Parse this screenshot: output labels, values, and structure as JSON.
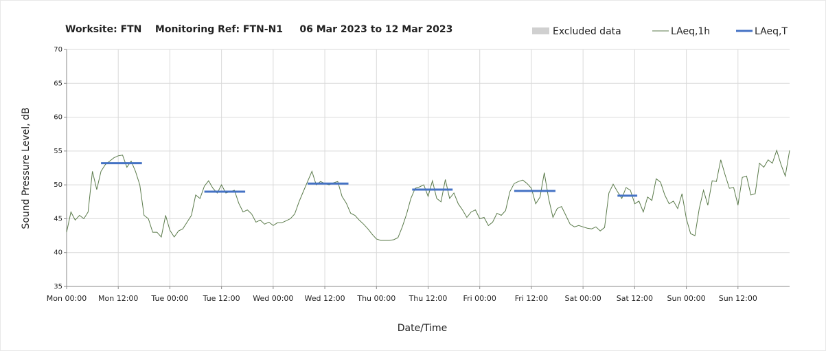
{
  "chart_data": {
    "type": "line",
    "title": "Worksite: FTN    Monitoring Ref: FTN-N1     06 Mar 2023 to 12 Mar 2023",
    "xlabel": "Date/Time",
    "ylabel": "Sound Pressure Level, dB",
    "xlim": [
      0,
      168
    ],
    "ylim": [
      35,
      70
    ],
    "xticks": [
      {
        "value": 0,
        "label": "Mon 00:00"
      },
      {
        "value": 12,
        "label": "Mon 12:00"
      },
      {
        "value": 24,
        "label": "Tue 00:00"
      },
      {
        "value": 36,
        "label": "Tue 12:00"
      },
      {
        "value": 48,
        "label": "Wed 00:00"
      },
      {
        "value": 60,
        "label": "Wed 12:00"
      },
      {
        "value": 72,
        "label": "Thu 00:00"
      },
      {
        "value": 84,
        "label": "Thu 12:00"
      },
      {
        "value": 96,
        "label": "Fri 00:00"
      },
      {
        "value": 108,
        "label": "Fri 12:00"
      },
      {
        "value": 120,
        "label": "Sat 00:00"
      },
      {
        "value": 132,
        "label": "Sat 12:00"
      },
      {
        "value": 144,
        "label": "Sun 00:00"
      },
      {
        "value": 156,
        "label": "Sun 12:00"
      }
    ],
    "yticks": [
      35,
      40,
      45,
      50,
      55,
      60,
      65,
      70
    ],
    "grid": true,
    "series": [
      {
        "name": "Excluded data",
        "color": "#d0d0d0",
        "x": [],
        "values": []
      },
      {
        "name": "LAeq,1h",
        "color": "#5a7a4a",
        "x": [
          0,
          1,
          2,
          3,
          4,
          5,
          6,
          7,
          8,
          9,
          10,
          11,
          12,
          13,
          14,
          15,
          16,
          17,
          18,
          19,
          20,
          21,
          22,
          23,
          24,
          25,
          26,
          27,
          28,
          29,
          30,
          31,
          32,
          33,
          34,
          35,
          36,
          37,
          38,
          39,
          40,
          41,
          42,
          43,
          44,
          45,
          46,
          47,
          48,
          49,
          50,
          51,
          52,
          53,
          54,
          55,
          56,
          57,
          58,
          59,
          60,
          61,
          62,
          63,
          64,
          65,
          66,
          67,
          68,
          69,
          70,
          71,
          72,
          73,
          74,
          75,
          76,
          77,
          78,
          79,
          80,
          81,
          82,
          83,
          84,
          85,
          86,
          87,
          88,
          89,
          90,
          91,
          92,
          93,
          94,
          95,
          96,
          97,
          98,
          99,
          100,
          101,
          102,
          103,
          104,
          105,
          106,
          107,
          108,
          109,
          110,
          111,
          112,
          113,
          114,
          115,
          116,
          117,
          118,
          119,
          120,
          121,
          122,
          123,
          124,
          125,
          126,
          127,
          128,
          129,
          130,
          131,
          132,
          133,
          134,
          135,
          136,
          137,
          138,
          139,
          140,
          141,
          142,
          143,
          144,
          145,
          146,
          147,
          148,
          149,
          150,
          151,
          152,
          153,
          154,
          155,
          156,
          157,
          158,
          159,
          160,
          161,
          162,
          163,
          164,
          165,
          166,
          167,
          168
        ],
        "values": [
          43,
          46,
          44.8,
          45.5,
          45,
          46,
          52,
          49.3,
          52,
          53,
          53.5,
          54,
          54.3,
          54.4,
          52.6,
          53.5,
          52,
          50,
          45.5,
          45,
          43,
          43,
          42.3,
          45.5,
          43.3,
          42.3,
          43.2,
          43.5,
          44.5,
          45.5,
          48.5,
          48,
          49.8,
          50.6,
          49.5,
          48.8,
          50,
          48.8,
          49,
          49.2,
          47.3,
          46,
          46.3,
          45.7,
          44.5,
          44.8,
          44.2,
          44.5,
          44,
          44.4,
          44.4,
          44.7,
          45,
          45.7,
          47.5,
          49,
          50.5,
          52,
          50,
          50.5,
          50.2,
          50,
          50.3,
          50.5,
          48.3,
          47.3,
          45.8,
          45.5,
          44.8,
          44.2,
          43.5,
          42.7,
          42,
          41.8,
          41.8,
          41.8,
          41.9,
          42.2,
          43.8,
          45.7,
          48,
          49.5,
          49.7,
          50,
          48.3,
          50.6,
          48,
          47.5,
          50.8,
          48,
          48.8,
          47.2,
          46.3,
          45.2,
          46,
          46.3,
          45,
          45.2,
          44,
          44.5,
          45.8,
          45.5,
          46.2,
          49,
          50.2,
          50.5,
          50.7,
          50.2,
          49.5,
          47.2,
          48.2,
          51.8,
          48,
          45.2,
          46.5,
          46.8,
          45.5,
          44.2,
          43.8,
          44,
          43.8,
          43.6,
          43.5,
          43.8,
          43.2,
          43.7,
          48.8,
          50.1,
          49,
          48,
          49.6,
          49.2,
          47.2,
          47.6,
          46,
          48.2,
          47.7,
          50.9,
          50.4,
          48.5,
          47.2,
          47.6,
          46.5,
          48.7,
          45,
          42.8,
          42.5,
          46.5,
          49.2,
          47,
          50.6,
          50.5,
          53.7,
          51.5,
          49.5,
          49.6,
          47,
          51.1,
          51.3,
          48.5,
          48.7,
          53.2,
          52.6,
          53.7,
          53.2,
          55.1,
          53,
          51.3,
          55.1
        ]
      },
      {
        "name": "LAeq,T",
        "color": "#4472c4",
        "x": [
          8,
          17.5,
          20,
          32,
          41.5,
          45,
          56,
          65.5,
          70,
          80.3,
          89.7,
          95,
          104,
          113.6,
          120,
          128,
          132.6
        ],
        "values": [
          53.2,
          53.2,
          null,
          49,
          49,
          null,
          50.2,
          50.2,
          null,
          49.3,
          49.3,
          null,
          49.1,
          49.1,
          null,
          48.4,
          48.4
        ]
      }
    ]
  }
}
